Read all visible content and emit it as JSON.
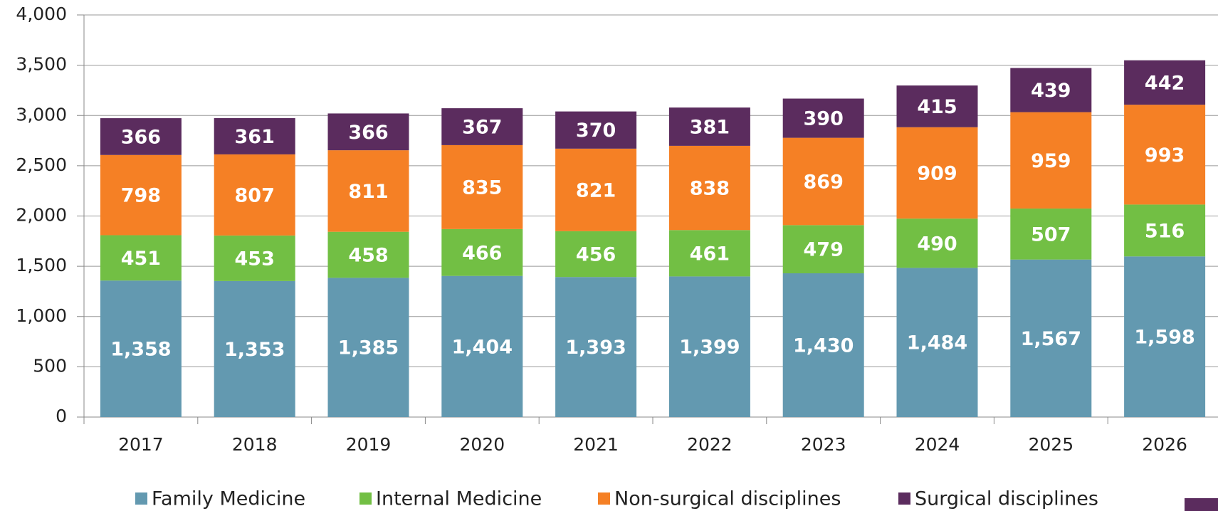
{
  "chart_data": {
    "type": "stacked_bar",
    "categories": [
      "2017",
      "2018",
      "2019",
      "2020",
      "2021",
      "2022",
      "2023",
      "2024",
      "2025",
      "2026"
    ],
    "series": [
      {
        "name": "Family Medicine",
        "color": "#6399b0",
        "values": [
          1358,
          1353,
          1385,
          1404,
          1393,
          1399,
          1430,
          1484,
          1567,
          1598
        ],
        "value_labels": [
          "1,358",
          "1,353",
          "1,385",
          "1,404",
          "1,393",
          "1,399",
          "1,430",
          "1,484",
          "1,567",
          "1,598"
        ]
      },
      {
        "name": "Internal Medicine",
        "color": "#72bf44",
        "values": [
          451,
          453,
          458,
          466,
          456,
          461,
          479,
          490,
          507,
          516
        ]
      },
      {
        "name": "Non-surgical disciplines",
        "color": "#f58025",
        "values": [
          798,
          807,
          811,
          835,
          821,
          838,
          869,
          909,
          959,
          993
        ]
      },
      {
        "name": "Surgical disciplines",
        "color": "#5b2c5e",
        "values": [
          366,
          361,
          366,
          367,
          370,
          381,
          390,
          415,
          439,
          442
        ]
      }
    ],
    "ylim": [
      0,
      4000
    ],
    "yticks": [
      0,
      500,
      {
        "value": 1000,
        "label": "1,000"
      },
      {
        "value": 1500,
        "label": "1,500"
      },
      {
        "value": 2000,
        "label": "2,000"
      },
      {
        "value": 2500,
        "label": "2,500"
      },
      {
        "value": 3000,
        "label": "3,000"
      },
      {
        "value": 3500,
        "label": "3,500"
      },
      {
        "value": 4000,
        "label": "4,000"
      }
    ],
    "grid": true
  }
}
